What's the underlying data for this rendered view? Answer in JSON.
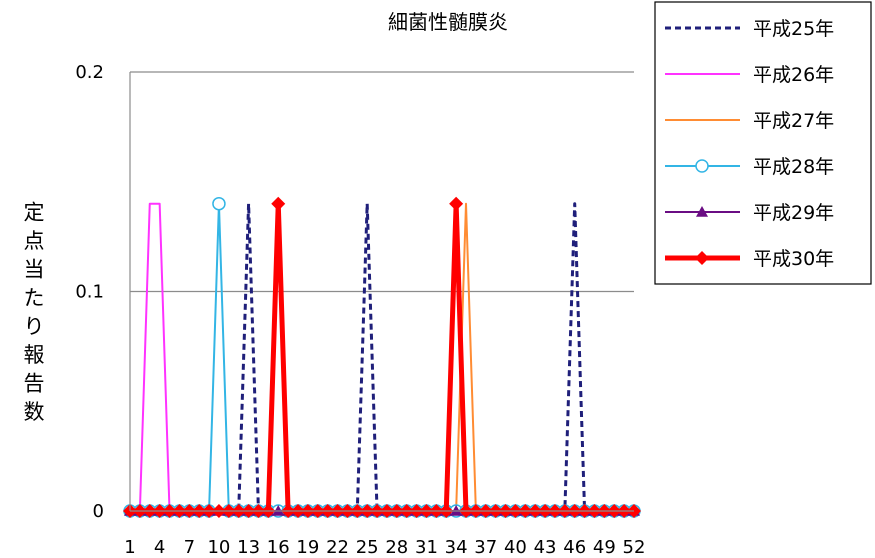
{
  "chart_data": {
    "type": "line",
    "title": "細菌性髄膜炎",
    "ylabel": "定点当たり報告数",
    "xlabel": "",
    "x": [
      1,
      2,
      3,
      4,
      5,
      6,
      7,
      8,
      9,
      10,
      11,
      12,
      13,
      14,
      15,
      16,
      17,
      18,
      19,
      20,
      21,
      22,
      23,
      24,
      25,
      26,
      27,
      28,
      29,
      30,
      31,
      32,
      33,
      34,
      35,
      36,
      37,
      38,
      39,
      40,
      41,
      42,
      43,
      44,
      45,
      46,
      47,
      48,
      49,
      50,
      51,
      52
    ],
    "x_tick_labels": [
      "1",
      "4",
      "7",
      "10",
      "13",
      "16",
      "19",
      "22",
      "25",
      "28",
      "31",
      "34",
      "37",
      "40",
      "43",
      "46",
      "49",
      "52"
    ],
    "ylim": [
      0,
      0.2
    ],
    "y_ticks": [
      "0",
      "0.1",
      "0.2"
    ],
    "grid": "horizontal",
    "legend_position": "top-right",
    "series": [
      {
        "name": "平成25年",
        "color": "#1f1f7a",
        "style": "dashed",
        "marker": "none",
        "values": [
          0,
          0,
          0,
          0,
          0,
          0,
          0,
          0,
          0,
          0,
          0,
          0,
          0.14,
          0,
          0,
          0,
          0,
          0,
          0,
          0,
          0,
          0,
          0,
          0,
          0.14,
          0,
          0,
          0,
          0,
          0,
          0,
          0,
          0,
          0,
          0,
          0,
          0,
          0,
          0,
          0,
          0,
          0,
          0,
          0,
          0,
          0.14,
          0,
          0,
          0,
          0,
          0,
          0
        ]
      },
      {
        "name": "平成26年",
        "color": "#ff33ff",
        "style": "solid",
        "marker": "none",
        "values": [
          0,
          0,
          0.14,
          0.14,
          0,
          0,
          0,
          0,
          0,
          0,
          0,
          0,
          0,
          0,
          0,
          0,
          0,
          0,
          0,
          0,
          0,
          0,
          0,
          0,
          0,
          0,
          0,
          0,
          0,
          0,
          0,
          0,
          0,
          0,
          0,
          0,
          0,
          0,
          0,
          0,
          0,
          0,
          0,
          0,
          0,
          0,
          0,
          0,
          0,
          0,
          0,
          0
        ]
      },
      {
        "name": "平成27年",
        "color": "#ff8c33",
        "style": "solid",
        "marker": "none",
        "values": [
          0,
          0,
          0,
          0,
          0,
          0,
          0,
          0,
          0,
          0,
          0,
          0,
          0,
          0,
          0,
          0,
          0,
          0,
          0,
          0,
          0,
          0,
          0,
          0,
          0,
          0,
          0,
          0,
          0,
          0,
          0,
          0,
          0,
          0,
          0.14,
          0,
          0,
          0,
          0,
          0,
          0,
          0,
          0,
          0,
          0,
          0,
          0,
          0,
          0,
          0,
          0,
          0
        ]
      },
      {
        "name": "平成28年",
        "color": "#33b5e5",
        "style": "solid",
        "marker": "circle",
        "values": [
          0,
          0,
          0,
          0,
          0,
          0,
          0,
          0,
          0,
          0.14,
          0,
          0,
          0,
          0,
          0,
          0,
          0,
          0,
          0,
          0,
          0,
          0,
          0,
          0,
          0,
          0,
          0,
          0,
          0,
          0,
          0,
          0,
          0,
          0,
          0,
          0,
          0,
          0,
          0,
          0,
          0,
          0,
          0,
          0,
          0,
          0,
          0,
          0,
          0,
          0,
          0,
          0
        ]
      },
      {
        "name": "平成29年",
        "color": "#6a0d83",
        "style": "solid",
        "marker": "triangle",
        "values": [
          0,
          0,
          0,
          0,
          0,
          0,
          0,
          0,
          0,
          0,
          0,
          0,
          0,
          0,
          0,
          0,
          0,
          0,
          0,
          0,
          0,
          0,
          0,
          0,
          0,
          0,
          0,
          0,
          0,
          0,
          0,
          0,
          0,
          0,
          0,
          0,
          0,
          0,
          0,
          0,
          0,
          0,
          0,
          0,
          0,
          0,
          0,
          0,
          0,
          0,
          0,
          0
        ]
      },
      {
        "name": "平成30年",
        "color": "#ff0000",
        "style": "solid-thick",
        "marker": "diamond",
        "values": [
          0,
          0,
          0,
          0,
          0,
          0,
          0,
          0,
          0,
          0,
          0,
          0,
          0,
          0,
          0,
          0.14,
          0,
          0,
          0,
          0,
          0,
          0,
          0,
          0,
          0,
          0,
          0,
          0,
          0,
          0,
          0,
          0,
          0,
          0.14,
          0,
          0,
          0,
          0,
          0,
          0,
          0,
          0,
          0,
          0,
          0,
          0,
          0,
          0,
          0,
          0,
          0,
          0
        ]
      }
    ]
  }
}
